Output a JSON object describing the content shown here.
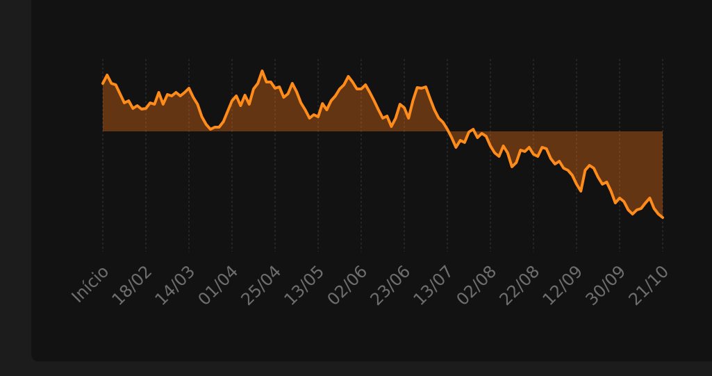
{
  "chart_data": {
    "type": "area",
    "color": "#ff8c1a",
    "fill_color": "#ff7814",
    "grid": true,
    "ylim": [
      -190,
      110
    ],
    "categories": [
      "Início",
      null,
      null,
      null,
      null,
      null,
      null,
      null,
      null,
      null,
      "18/02",
      null,
      null,
      null,
      null,
      null,
      null,
      null,
      null,
      null,
      "14/03",
      null,
      null,
      null,
      null,
      null,
      null,
      null,
      null,
      null,
      "01/04",
      null,
      null,
      null,
      null,
      null,
      null,
      null,
      null,
      null,
      "25/04",
      null,
      null,
      null,
      null,
      null,
      null,
      null,
      null,
      null,
      "13/05",
      null,
      null,
      null,
      null,
      null,
      null,
      null,
      null,
      null,
      "02/06",
      null,
      null,
      null,
      null,
      null,
      null,
      null,
      null,
      null,
      "23/06",
      null,
      null,
      null,
      null,
      null,
      null,
      null,
      null,
      null,
      "13/07",
      null,
      null,
      null,
      null,
      null,
      null,
      null,
      null,
      null,
      "02/08",
      null,
      null,
      null,
      null,
      null,
      null,
      null,
      null,
      null,
      "22/08",
      null,
      null,
      null,
      null,
      null,
      null,
      null,
      null,
      null,
      "12/09",
      null,
      null,
      null,
      null,
      null,
      null,
      null,
      null,
      null,
      "30/09",
      null,
      null,
      null,
      null,
      null,
      null,
      null,
      null,
      null,
      "21/10"
    ],
    "values": [
      69,
      81,
      69,
      67,
      54,
      41,
      44,
      33,
      37,
      32,
      33,
      41,
      39,
      56,
      39,
      53,
      51,
      56,
      51,
      56,
      62,
      49,
      39,
      21,
      10,
      3,
      6,
      6,
      14,
      29,
      44,
      51,
      37,
      52,
      39,
      61,
      69,
      87,
      71,
      71,
      62,
      64,
      49,
      54,
      69,
      57,
      41,
      31,
      19,
      24,
      21,
      40,
      31,
      44,
      51,
      61,
      67,
      79,
      71,
      61,
      61,
      67,
      56,
      44,
      31,
      19,
      22,
      7,
      19,
      39,
      34,
      19,
      44,
      63,
      62,
      64,
      47,
      31,
      19,
      13,
      3,
      -9,
      -23,
      -13,
      -16,
      -1,
      3,
      -9,
      -3,
      -7,
      -21,
      -31,
      -36,
      -21,
      -31,
      -51,
      -45,
      -27,
      -29,
      -23,
      -33,
      -36,
      -23,
      -25,
      -39,
      -47,
      -43,
      -53,
      -56,
      -63,
      -76,
      -86,
      -56,
      -49,
      -53,
      -66,
      -76,
      -73,
      -86,
      -103,
      -96,
      -101,
      -113,
      -119,
      -113,
      -111,
      -103,
      -96,
      -111,
      -119,
      -124
    ]
  }
}
